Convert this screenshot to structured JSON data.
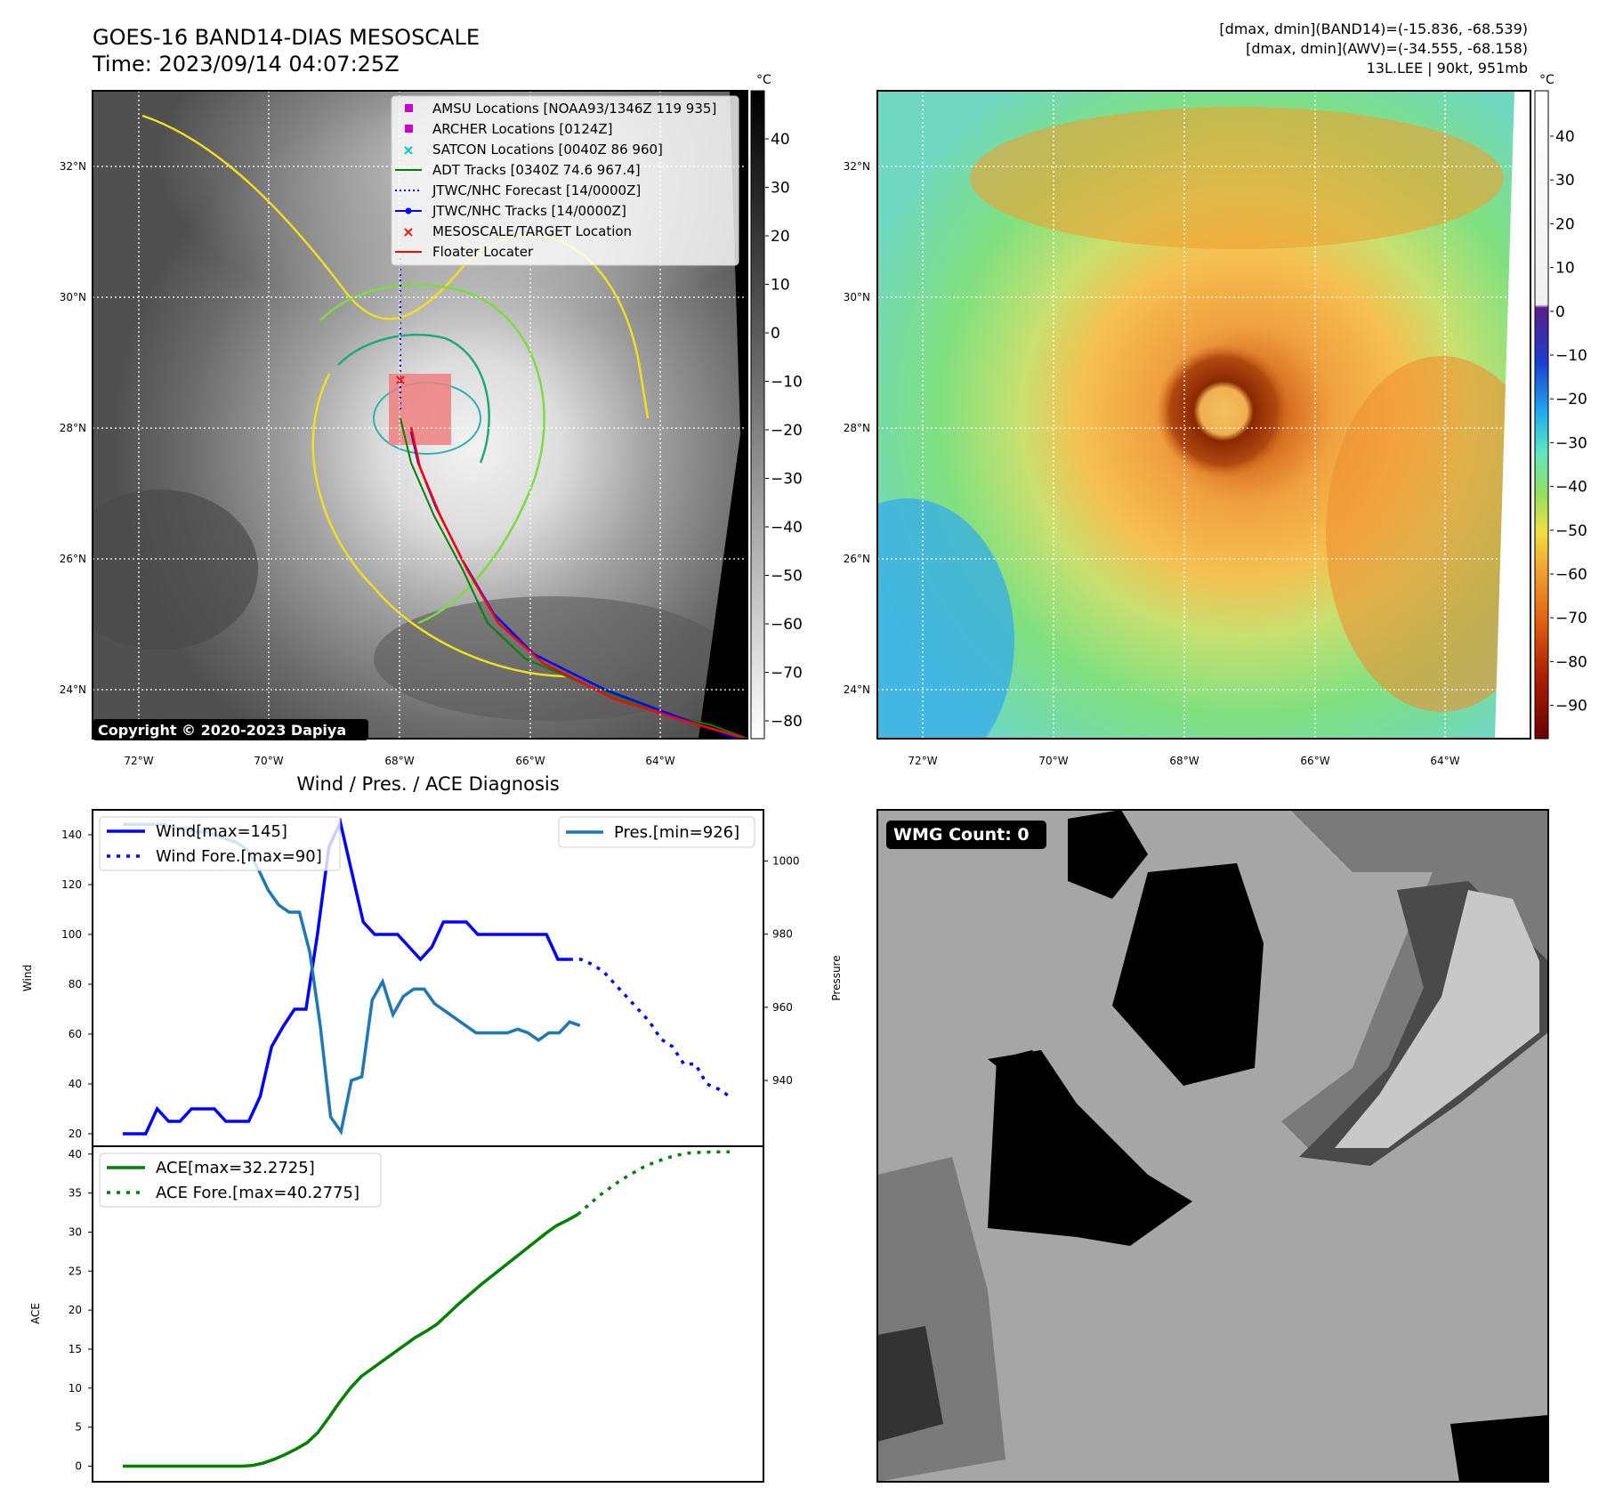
{
  "header": {
    "title": "GOES-16 BAND14-DIAS MESOSCALE",
    "time": "Time: 2023/09/14 04:07:25Z",
    "dmax_band14": "[dmax, dmin](BAND14)=(-15.836, -68.539)",
    "dmax_awv": "[dmax, dmin](AWV)=(-34.555, -68.158)",
    "storm": "13L.LEE | 90kt, 951mb"
  },
  "map_axes": {
    "lat_labels": [
      "32°N",
      "30°N",
      "28°N",
      "26°N",
      "24°N"
    ],
    "lon_labels": [
      "72°W",
      "70°W",
      "68°W",
      "66°W",
      "64°W"
    ],
    "copyright": "Copyright © 2020-2023 Dapiya"
  },
  "colorbar_left": {
    "unit": "°C",
    "ticks": [
      "40",
      "30",
      "20",
      "10",
      "0",
      "−10",
      "−20",
      "−30",
      "−40",
      "−50",
      "−60",
      "−70",
      "−80"
    ]
  },
  "colorbar_right": {
    "unit": "°C",
    "ticks": [
      "40",
      "30",
      "20",
      "10",
      "0",
      "−10",
      "−20",
      "−30",
      "−40",
      "−50",
      "−60",
      "−70",
      "−80",
      "−90"
    ]
  },
  "legend": {
    "items": [
      {
        "label": "AMSU Locations [NOAA93/1346Z 119 935]",
        "marker": "square",
        "color": "#cc00cc"
      },
      {
        "label": "ARCHER Locations [0124Z]",
        "marker": "square",
        "color": "#cc00cc"
      },
      {
        "label": "SATCON Locations [0040Z 86 960]",
        "marker": "x",
        "color": "#00c0c0"
      },
      {
        "label": "ADT Tracks [0340Z 74.6 967.4]",
        "marker": "line",
        "color": "#008000"
      },
      {
        "label": "JTWC/NHC Forecast [14/0000Z]",
        "marker": "dotted",
        "color": "#0000ff"
      },
      {
        "label": "JTWC/NHC Tracks [14/0000Z]",
        "marker": "line-dot",
        "color": "#0000ff"
      },
      {
        "label": "MESOSCALE/TARGET Location",
        "marker": "x",
        "color": "#ff0000"
      },
      {
        "label": "Floater Locater",
        "marker": "line",
        "color": "#ff0000"
      }
    ]
  },
  "wmg": {
    "label": "WMG Count: 0"
  },
  "chart_data": [
    {
      "type": "line",
      "title": "Wind / Pres. / ACE Diagnosis",
      "ylabel": "Wind",
      "ylabel2": "Pressure",
      "ylim": [
        15,
        150
      ],
      "ylim2": [
        922,
        1014
      ],
      "yticks": [
        20,
        40,
        60,
        80,
        100,
        120,
        140
      ],
      "yticks2": [
        940,
        960,
        980,
        1000
      ],
      "series": [
        {
          "name": "Wind[max=145]",
          "color": "#0000ff",
          "style": "solid",
          "values": [
            20,
            20,
            20,
            30,
            25,
            25,
            30,
            30,
            30,
            25,
            25,
            25,
            35,
            55,
            63,
            70,
            70,
            100,
            135,
            145,
            125,
            105,
            100,
            100,
            100,
            95,
            90,
            95,
            105,
            105,
            105,
            100,
            100,
            100,
            100,
            100,
            100,
            100,
            90,
            90
          ]
        },
        {
          "name": "Wind Fore.[max=90]",
          "color": "#0000ff",
          "style": "dotted",
          "values": [
            90,
            90,
            88,
            85,
            80,
            75,
            70,
            65,
            58,
            55,
            48,
            48,
            40,
            38,
            35
          ]
        },
        {
          "name": "Pres.[min=926]",
          "color": "#1f77b4",
          "style": "solid",
          "values": [
            1010,
            1010,
            1010,
            1010,
            1010,
            1009,
            1009,
            1008,
            1008,
            1007,
            1006,
            1005,
            1003,
            998,
            992,
            988,
            986,
            986,
            975,
            955,
            930,
            926,
            940,
            941,
            962,
            967,
            958,
            963,
            965,
            965,
            961,
            959,
            957,
            955,
            953,
            953,
            953,
            953,
            954,
            953,
            951,
            953,
            953,
            956,
            955
          ]
        }
      ]
    },
    {
      "type": "line",
      "ylabel": "ACE",
      "ylim": [
        -2,
        41
      ],
      "yticks": [
        0,
        5,
        10,
        15,
        20,
        25,
        30,
        35,
        40
      ],
      "series": [
        {
          "name": "ACE[max=32.2725]",
          "color": "#008000",
          "style": "solid",
          "values": [
            0,
            0,
            0,
            0,
            0,
            0,
            0,
            0,
            0,
            0,
            0,
            0,
            0.1,
            0.4,
            0.9,
            1.5,
            2.2,
            3,
            4.3,
            6.2,
            8.2,
            10,
            11.5,
            12.5,
            13.5,
            14.5,
            15.5,
            16.5,
            17.3,
            18.2,
            19.5,
            20.8,
            22,
            23.2,
            24.3,
            25.4,
            26.5,
            27.6,
            28.7,
            29.8,
            30.8,
            31.5,
            32.27
          ]
        },
        {
          "name": "ACE Fore.[max=40.2775]",
          "color": "#008000",
          "style": "dotted",
          "values": [
            32.27,
            33.5,
            34.7,
            35.7,
            36.7,
            37.5,
            38.3,
            38.9,
            39.4,
            39.8,
            40.1,
            40.2,
            40.25,
            40.27,
            40.2775
          ]
        }
      ]
    }
  ]
}
